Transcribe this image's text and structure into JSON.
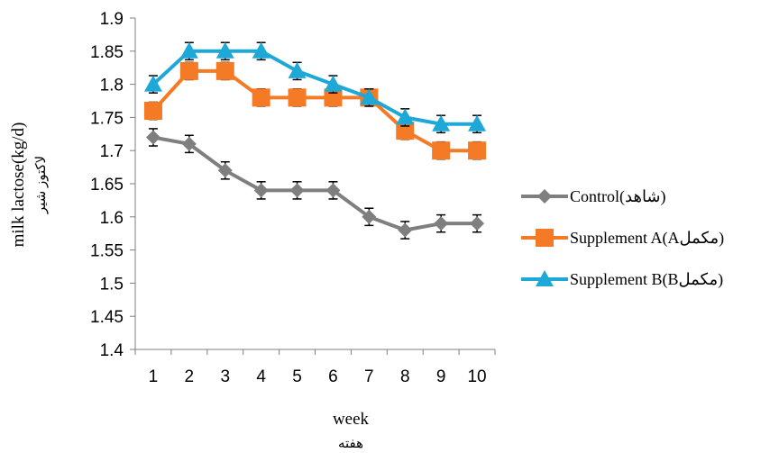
{
  "chart_data": {
    "type": "line",
    "title": "",
    "xlabel": "week",
    "xlabel_alt": "هفته",
    "ylabel": "milk lactose(kg/d)",
    "ylabel_alt": "لاکتوز شیر",
    "ylim": [
      1.4,
      1.9
    ],
    "ytick_step": 0.05,
    "x": [
      1,
      2,
      3,
      4,
      5,
      6,
      7,
      8,
      9,
      10
    ],
    "grid": false,
    "legend_position": "right",
    "error_bar": 0.013,
    "series": [
      {
        "name": "Control(شاهد)",
        "color": "#7f7f7f",
        "marker": "diamond",
        "values": [
          1.72,
          1.71,
          1.67,
          1.64,
          1.64,
          1.64,
          1.6,
          1.58,
          1.59,
          1.59
        ]
      },
      {
        "name": "Supplement A(Aمکمل)",
        "color": "#f47a25",
        "marker": "square",
        "values": [
          1.76,
          1.82,
          1.82,
          1.78,
          1.78,
          1.78,
          1.78,
          1.73,
          1.7,
          1.7
        ]
      },
      {
        "name": "Supplement B(Bمکمل)",
        "color": "#1ea8d8",
        "marker": "triangle",
        "values": [
          1.8,
          1.85,
          1.85,
          1.85,
          1.82,
          1.8,
          1.78,
          1.75,
          1.74,
          1.74
        ]
      }
    ]
  }
}
